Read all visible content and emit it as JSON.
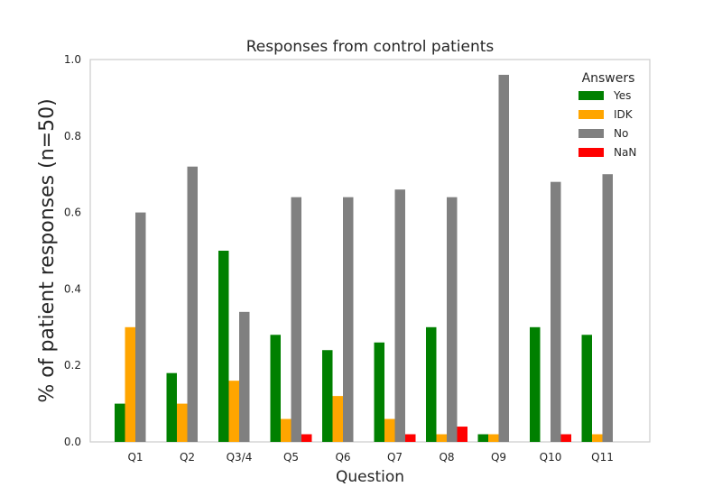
{
  "chart_data": {
    "type": "bar",
    "title": "Responses from control patients",
    "xlabel": "Question",
    "ylabel": "% of patient responses (n=50)",
    "ylim": [
      0,
      1.0
    ],
    "yticks": [
      "0.0",
      "0.2",
      "0.4",
      "0.6",
      "0.8",
      "1.0"
    ],
    "grid": false,
    "legend": {
      "title": "Answers",
      "placement": "top-right"
    },
    "categories": [
      "Q1",
      "Q2",
      "Q3/4",
      "Q5",
      "Q6",
      "Q7",
      "Q8",
      "Q9",
      "Q10",
      "Q11"
    ],
    "series": [
      {
        "name": "Yes",
        "color": "#008000",
        "values": [
          0.1,
          0.18,
          0.5,
          0.28,
          0.24,
          0.26,
          0.3,
          0.02,
          0.3,
          0.28
        ]
      },
      {
        "name": "IDK",
        "color": "#FFA500",
        "values": [
          0.3,
          0.1,
          0.16,
          0.06,
          0.12,
          0.06,
          0.02,
          0.02,
          0.0,
          0.02
        ]
      },
      {
        "name": "No",
        "color": "#808080",
        "values": [
          0.6,
          0.72,
          0.34,
          0.64,
          0.64,
          0.66,
          0.64,
          0.96,
          0.68,
          0.7
        ]
      },
      {
        "name": "NaN",
        "color": "#FF0000",
        "values": [
          0.0,
          0.0,
          0.0,
          0.02,
          0.0,
          0.02,
          0.04,
          0.0,
          0.02,
          0.0
        ]
      }
    ]
  }
}
